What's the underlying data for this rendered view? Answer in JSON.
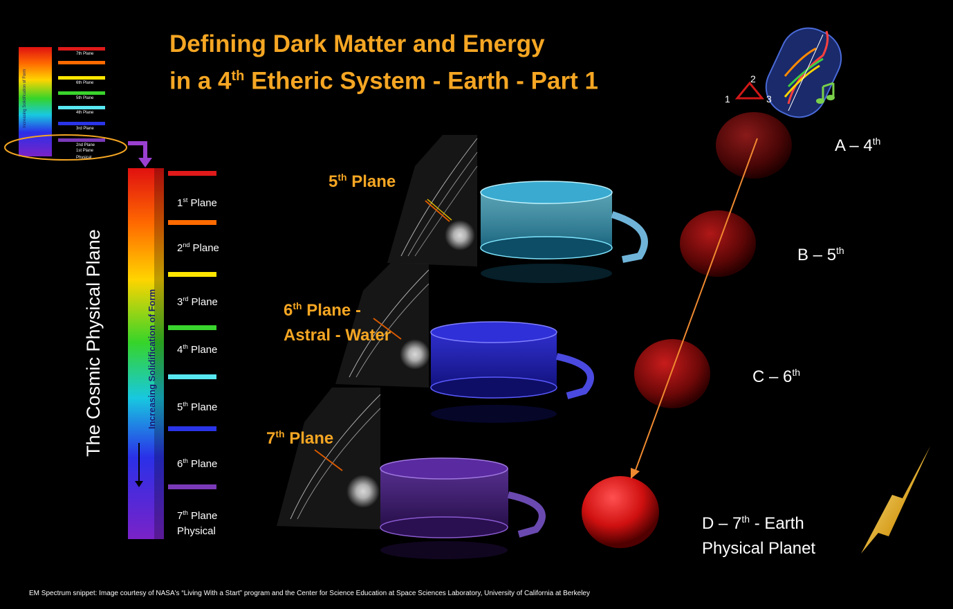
{
  "title": {
    "line1": "Defining Dark Matter and Energy",
    "line2_pre": "in a 4",
    "line2_sup": "th",
    "line2_post": " Etheric System - Earth - Part 1"
  },
  "cosmic_label": "The Cosmic Physical Plane",
  "bar_vertical_text": "Increasing  Solidification of Form",
  "planes": [
    {
      "num": "1",
      "sup": "st",
      "name": " Plane",
      "color": "#e01a1a"
    },
    {
      "num": "2",
      "sup": "nd",
      "name": " Plane",
      "color": "#ff6a00"
    },
    {
      "num": "3",
      "sup": "rd",
      "name": " Plane",
      "color": "#ffe600"
    },
    {
      "num": "4",
      "sup": "th",
      "name": " Plane",
      "color": "#3ad42e"
    },
    {
      "num": "5",
      "sup": "th",
      "name": " Plane",
      "color": "#58e8f2"
    },
    {
      "num": "6",
      "sup": "th",
      "name": " Plane",
      "color": "#2a34e8"
    },
    {
      "num": "7",
      "sup": "th",
      "name": " Plane",
      "extra": "Physical",
      "color": "#7a3ab8"
    }
  ],
  "mini_planes": [
    {
      "label": "7th Plane",
      "color": "#e01a1a"
    },
    {
      "label": "",
      "color": "#ff6a00"
    },
    {
      "label": "6th Plane",
      "color": "#ffe600"
    },
    {
      "label": "5th Plane",
      "color": "#3ad42e"
    },
    {
      "label": "4th Plane",
      "color": "#58e8f2"
    },
    {
      "label": "3rd Plane",
      "color": "#2a34e8"
    },
    {
      "label": "2nd Plane",
      "color": "#7a3ab8"
    }
  ],
  "mini_bottom_label": "1st Plane",
  "mini_bottom_label2": "Physical",
  "mini_vertical_text": "Increasing  Solidification of Form",
  "plane_titles": {
    "p5": {
      "num": "5",
      "sup": "th",
      "text": " Plane"
    },
    "p6": {
      "num": "6",
      "sup": "th",
      "text": " Plane -",
      "line2": "Astral - Water"
    },
    "p7": {
      "num": "7",
      "sup": "th",
      "text": " Plane"
    }
  },
  "spheres": [
    {
      "letter": "A – 4",
      "sup": "th"
    },
    {
      "letter": "B – 5",
      "sup": "th"
    },
    {
      "letter": "C – 6",
      "sup": "th"
    },
    {
      "letter": "D – 7",
      "sup": "th",
      "post": "  -  Earth",
      "line2": "Physical Planet"
    }
  ],
  "triangle_numbers": [
    "1",
    "2",
    "3"
  ],
  "credit": "EM Spectrum snippet: Image courtesy of NASA's “Living With a Start” program and the Center for Science Education at Space Sciences Laboratory, University of California at Berkeley"
}
